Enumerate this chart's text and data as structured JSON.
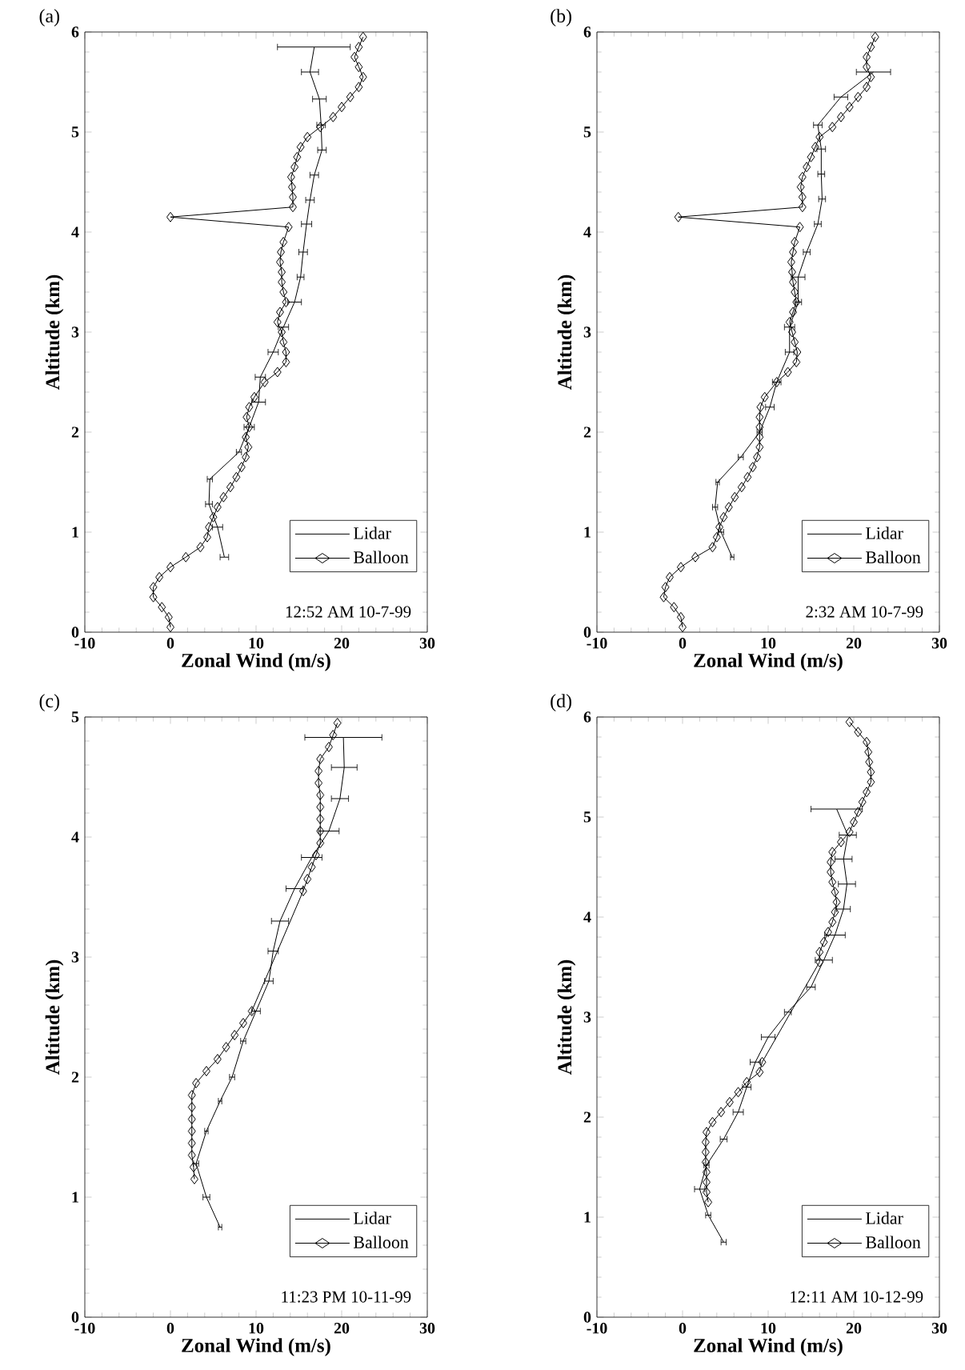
{
  "chart_data": [
    {
      "type": "line",
      "title": "(a)",
      "xlabel": "Zonal Wind (m/s)",
      "ylabel": "Altitude (km)",
      "annotations": [
        "12:52 AM 10-7-99"
      ],
      "xlim": [
        -10,
        30
      ],
      "xticks": [
        -10,
        0,
        10,
        20,
        30
      ],
      "ylim": [
        0,
        6
      ],
      "yticks": [
        0,
        1,
        2,
        3,
        4,
        5,
        6
      ],
      "legend": "bottom right",
      "line_style": "solid",
      "series": [
        {
          "name": "Lidar",
          "color": "#000000",
          "marker": "none",
          "x": [
            6.3,
            5.5,
            4.5,
            4.6,
            8.0,
            9.2,
            10.3,
            10.5,
            12.0,
            13.2,
            14.5,
            15.2,
            15.5,
            15.9,
            16.3,
            16.8,
            17.7,
            17.6,
            17.4,
            16.3,
            16.8
          ],
          "values": [
            0.75,
            1.05,
            1.28,
            1.53,
            1.8,
            2.05,
            2.3,
            2.55,
            2.8,
            3.05,
            3.3,
            3.55,
            3.8,
            4.08,
            4.32,
            4.57,
            4.82,
            5.07,
            5.33,
            5.6,
            5.85
          ],
          "xerrors": [
            0.5,
            0.6,
            0.4,
            0.3,
            0.3,
            0.6,
            0.8,
            0.6,
            0.6,
            0.6,
            0.8,
            0.4,
            0.5,
            0.6,
            0.5,
            0.5,
            0.5,
            0.5,
            0.8,
            1.0,
            [
              12.5,
              21.0
            ]
          ]
        },
        {
          "name": "Balloon",
          "color": "#000000",
          "marker": "diamond",
          "x": [
            0,
            -0.2,
            -1,
            -2,
            -2,
            -1.3,
            0,
            1.8,
            3.5,
            4.3,
            4.5,
            5,
            5.5,
            6.2,
            7,
            7.7,
            8.3,
            8.8,
            9.1,
            8.8,
            9.2,
            8.9,
            9.2,
            9.8,
            11,
            12.5,
            13.5,
            13.5,
            13.2,
            13,
            12.5,
            12.8,
            13.5,
            13.2,
            13,
            13,
            12.8,
            12.9,
            13.2,
            13.8,
            0,
            14.3,
            14.3,
            14.2,
            14.1,
            14.5,
            14.8,
            15.2,
            16,
            17.5,
            19,
            20,
            21,
            22,
            22.5,
            22,
            21.5,
            22,
            22.5
          ],
          "values": [
            0.05,
            0.15,
            0.25,
            0.35,
            0.45,
            0.55,
            0.65,
            0.75,
            0.85,
            0.95,
            1.05,
            1.15,
            1.25,
            1.35,
            1.45,
            1.55,
            1.65,
            1.75,
            1.85,
            1.95,
            2.05,
            2.15,
            2.25,
            2.35,
            2.5,
            2.6,
            2.7,
            2.8,
            2.9,
            3.0,
            3.1,
            3.2,
            3.3,
            3.4,
            3.5,
            3.6,
            3.7,
            3.8,
            3.9,
            4.05,
            4.15,
            4.25,
            4.35,
            4.45,
            4.55,
            4.65,
            4.75,
            4.85,
            4.95,
            5.05,
            5.15,
            5.25,
            5.35,
            5.45,
            5.55,
            5.65,
            5.75,
            5.85,
            5.95
          ]
        }
      ]
    },
    {
      "type": "line",
      "title": "(b)",
      "xlabel": "Zonal Wind (m/s)",
      "ylabel": "Altitude (km)",
      "annotations": [
        "2:32 AM 10-7-99"
      ],
      "xlim": [
        -10,
        30
      ],
      "xticks": [
        -10,
        0,
        10,
        20,
        30
      ],
      "ylim": [
        0,
        6
      ],
      "yticks": [
        0,
        1,
        2,
        3,
        4,
        5,
        6
      ],
      "legend": "bottom right",
      "line_style": "solid",
      "series": [
        {
          "name": "Lidar",
          "color": "#000000",
          "marker": "none",
          "x": [
            5.8,
            4.5,
            3.8,
            4.1,
            6.8,
            9.0,
            10.2,
            11.0,
            12.5,
            12.5,
            13.5,
            13.5,
            14.5,
            15.8,
            16.3,
            16.2,
            16.2,
            15.8,
            18.5,
            22.3
          ],
          "values": [
            0.75,
            1.0,
            1.25,
            1.5,
            1.75,
            2.0,
            2.25,
            2.5,
            2.8,
            3.05,
            3.3,
            3.55,
            3.8,
            4.08,
            4.33,
            4.58,
            4.83,
            5.07,
            5.35,
            5.6
          ],
          "xerrors": [
            0.2,
            0.3,
            0.3,
            0.2,
            0.3,
            0.3,
            0.5,
            0.5,
            0.5,
            0.6,
            0.4,
            0.8,
            0.4,
            0.4,
            0.4,
            0.4,
            0.5,
            0.5,
            0.8,
            2.0
          ]
        },
        {
          "name": "Balloon",
          "color": "#000000",
          "marker": "diamond",
          "x": [
            0,
            -0.2,
            -1,
            -2.2,
            -2,
            -1.5,
            -0.2,
            1.5,
            3.5,
            4,
            4.3,
            4.8,
            5.4,
            6.1,
            6.9,
            7.6,
            8.2,
            8.7,
            9,
            9,
            9,
            9,
            9.1,
            9.6,
            11,
            12.3,
            13.3,
            13.4,
            13.1,
            12.8,
            12.5,
            12.9,
            13.3,
            13.1,
            12.9,
            12.8,
            12.7,
            12.9,
            13.1,
            13.7,
            -0.5,
            14,
            14,
            13.8,
            14,
            14.5,
            15,
            15.5,
            16,
            17.5,
            18.5,
            19.5,
            20.5,
            21.5,
            22,
            21.5,
            21.5,
            22,
            22.5
          ],
          "values": [
            0.05,
            0.15,
            0.25,
            0.35,
            0.45,
            0.55,
            0.65,
            0.75,
            0.85,
            0.95,
            1.05,
            1.15,
            1.25,
            1.35,
            1.45,
            1.55,
            1.65,
            1.75,
            1.85,
            1.95,
            2.05,
            2.15,
            2.25,
            2.35,
            2.5,
            2.6,
            2.7,
            2.8,
            2.9,
            3.0,
            3.1,
            3.2,
            3.3,
            3.4,
            3.5,
            3.6,
            3.7,
            3.8,
            3.9,
            4.05,
            4.15,
            4.25,
            4.35,
            4.45,
            4.55,
            4.65,
            4.75,
            4.85,
            4.95,
            5.05,
            5.15,
            5.25,
            5.35,
            5.45,
            5.55,
            5.65,
            5.75,
            5.85,
            5.95
          ]
        }
      ]
    },
    {
      "type": "line",
      "title": "(c)",
      "xlabel": "Zonal Wind (m/s)",
      "ylabel": "Altitude (km)",
      "annotations": [
        "11:23 PM 10-11-99"
      ],
      "xlim": [
        -10,
        30
      ],
      "xticks": [
        -10,
        0,
        10,
        20,
        30
      ],
      "ylim": [
        0,
        5
      ],
      "yticks": [
        0,
        1,
        2,
        3,
        4,
        5
      ],
      "legend": "bottom right",
      "line_style": "solid",
      "series": [
        {
          "name": "Lidar",
          "color": "#000000",
          "marker": "none",
          "x": [
            5.8,
            4.2,
            3.0,
            4.2,
            5.8,
            7.2,
            8.5,
            10,
            11.5,
            12,
            12.8,
            14.5,
            16.5,
            18.5,
            19.8,
            20.3,
            20.2
          ],
          "values": [
            0.75,
            1.0,
            1.28,
            1.55,
            1.8,
            2.0,
            2.3,
            2.55,
            2.8,
            3.05,
            3.3,
            3.57,
            3.83,
            4.05,
            4.32,
            4.58,
            4.83
          ],
          "xerrors": [
            0.2,
            0.4,
            0.3,
            0.2,
            0.2,
            0.3,
            0.3,
            0.5,
            0.5,
            0.6,
            1.0,
            1.0,
            1.2,
            1.2,
            1.0,
            1.5,
            4.5
          ]
        },
        {
          "name": "Balloon",
          "color": "#000000",
          "marker": "diamond",
          "x": [
            2.8,
            2.7,
            2.5,
            2.5,
            2.5,
            2.5,
            2.5,
            2.5,
            3,
            4.2,
            5.5,
            6.5,
            7.5,
            8.5,
            9.5,
            15.5,
            16,
            16.5,
            17,
            17.5,
            17.5,
            17.5,
            17.5,
            17.5,
            17.3,
            17.3,
            17.5,
            18.5,
            19,
            19.5
          ],
          "values": [
            1.15,
            1.25,
            1.35,
            1.45,
            1.55,
            1.65,
            1.75,
            1.85,
            1.95,
            2.05,
            2.15,
            2.25,
            2.35,
            2.45,
            2.55,
            3.55,
            3.65,
            3.75,
            3.85,
            3.95,
            4.05,
            4.15,
            4.25,
            4.35,
            4.45,
            4.55,
            4.65,
            4.75,
            4.85,
            4.95
          ]
        }
      ]
    },
    {
      "type": "line",
      "title": "(d)",
      "xlabel": "Zonal Wind (m/s)",
      "ylabel": "Altitude (km)",
      "annotations": [
        "12:11 AM 10-12-99"
      ],
      "xlim": [
        -10,
        30
      ],
      "xticks": [
        -10,
        0,
        10,
        20,
        30
      ],
      "ylim": [
        0,
        6
      ],
      "yticks": [
        0,
        1,
        2,
        3,
        4,
        5,
        6
      ],
      "legend": "bottom right",
      "line_style": "solid",
      "series": [
        {
          "name": "Lidar",
          "color": "#000000",
          "marker": "none",
          "x": [
            4.8,
            3.0,
            2.0,
            2.8,
            4.8,
            6.5,
            7.5,
            8.5,
            10.0,
            12.3,
            15,
            16.5,
            17.8,
            18.8,
            19.2,
            18.8,
            19.3,
            18.0
          ],
          "values": [
            0.75,
            1.02,
            1.28,
            1.52,
            1.78,
            2.05,
            2.3,
            2.55,
            2.8,
            3.05,
            3.3,
            3.57,
            3.82,
            4.08,
            4.33,
            4.58,
            4.82,
            5.08
          ],
          "xerrors": [
            0.3,
            0.3,
            0.6,
            0.3,
            0.4,
            0.6,
            0.5,
            0.6,
            0.8,
            0.4,
            0.5,
            1.0,
            1.2,
            0.8,
            1.0,
            1.0,
            1.0,
            3.0
          ]
        },
        {
          "name": "Balloon",
          "color": "#000000",
          "marker": "diamond",
          "x": [
            3,
            2.8,
            2.8,
            2.8,
            2.7,
            2.7,
            2.7,
            2.8,
            3.5,
            4.5,
            5.5,
            6.5,
            7.5,
            9,
            9.3,
            16,
            16,
            16.5,
            17,
            17.5,
            17.8,
            18,
            17.8,
            17.5,
            17.3,
            17.3,
            17.5,
            18.5,
            19.5,
            20,
            20.5,
            21,
            21.5,
            22,
            22,
            21.8,
            21.7,
            21.5,
            20.5,
            19.5
          ],
          "values": [
            1.15,
            1.25,
            1.35,
            1.45,
            1.55,
            1.65,
            1.75,
            1.85,
            1.95,
            2.05,
            2.15,
            2.25,
            2.35,
            2.45,
            2.55,
            3.55,
            3.65,
            3.75,
            3.85,
            3.95,
            4.05,
            4.15,
            4.25,
            4.35,
            4.45,
            4.55,
            4.65,
            4.75,
            4.85,
            4.95,
            5.05,
            5.15,
            5.25,
            5.35,
            5.45,
            5.55,
            5.65,
            5.75,
            5.85,
            5.95
          ]
        }
      ]
    }
  ]
}
